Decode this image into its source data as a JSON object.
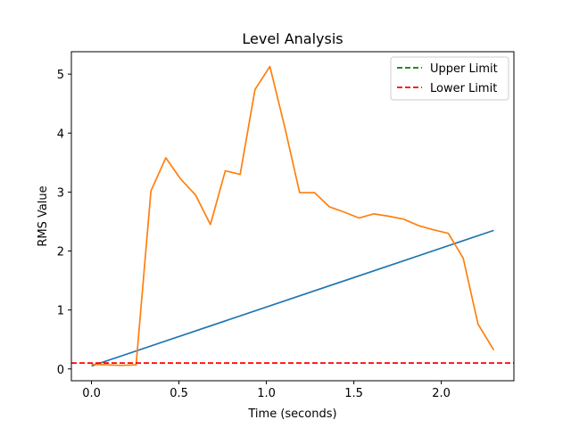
{
  "chart_data": {
    "type": "line",
    "title": "Level Analysis",
    "xlabel": "Time (seconds)",
    "ylabel": "RMS Value",
    "xlim": [
      -0.115,
      2.415
    ],
    "ylim": [
      -0.2,
      5.38
    ],
    "x_ticks": [
      0.0,
      0.5,
      1.0,
      1.5,
      2.0
    ],
    "x_tick_labels": [
      "0.0",
      "0.5",
      "1.0",
      "1.5",
      "2.0"
    ],
    "y_ticks": [
      0,
      1,
      2,
      3,
      4,
      5
    ],
    "y_tick_labels": [
      "0",
      "1",
      "2",
      "3",
      "4",
      "5"
    ],
    "grid": false,
    "legend_position": "top-right",
    "series": [
      {
        "color": "#1f77b4",
        "style": "solid",
        "x": [
          0.0,
          2.3
        ],
        "y": [
          0.05,
          2.35
        ]
      },
      {
        "color": "#ff7f0e",
        "style": "solid",
        "x": [
          0.0,
          0.085,
          0.17,
          0.255,
          0.34,
          0.425,
          0.51,
          0.595,
          0.68,
          0.765,
          0.85,
          0.935,
          1.02,
          1.105,
          1.19,
          1.275,
          1.36,
          1.445,
          1.53,
          1.615,
          1.7,
          1.785,
          1.87,
          1.955,
          2.04,
          2.125,
          2.21,
          2.3
        ],
        "y": [
          0.08,
          0.07,
          0.06,
          0.07,
          3.02,
          3.58,
          3.22,
          2.95,
          2.45,
          3.36,
          3.3,
          4.74,
          5.13,
          4.1,
          2.99,
          2.99,
          2.75,
          2.66,
          2.56,
          2.63,
          2.59,
          2.54,
          2.43,
          2.36,
          2.3,
          1.88,
          0.76,
          0.32
        ]
      }
    ],
    "reference_lines": [
      {
        "name": "Upper Limit",
        "color": "#008000",
        "style": "dashed",
        "y": null
      },
      {
        "name": "Lower Limit",
        "color": "#ff0000",
        "style": "dashed",
        "y": 0.1
      }
    ]
  }
}
